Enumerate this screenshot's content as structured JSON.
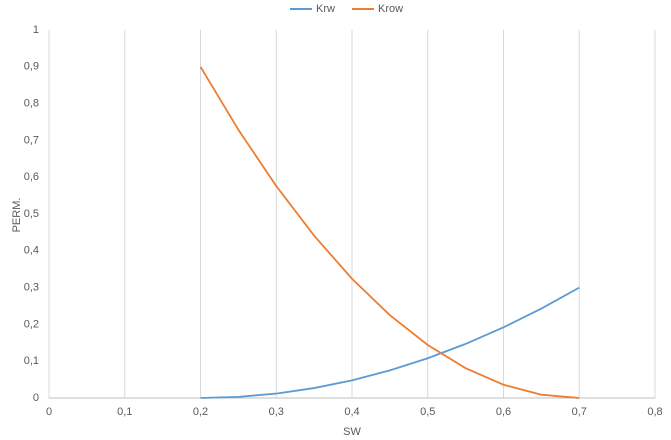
{
  "chart_data": {
    "type": "line",
    "x_label": "SW",
    "y_label": "PERM.",
    "x": [
      0.2,
      0.25,
      0.3,
      0.35,
      0.4,
      0.45,
      0.5,
      0.55,
      0.6,
      0.65,
      0.7
    ],
    "series": [
      {
        "name": "Krw",
        "color": "#5b9bd5",
        "values": [
          0,
          0.003,
          0.012,
          0.027,
          0.048,
          0.075,
          0.108,
          0.147,
          0.192,
          0.243,
          0.3
        ]
      },
      {
        "name": "Krow",
        "color": "#ed7d31",
        "values": [
          0.9,
          0.729,
          0.576,
          0.441,
          0.324,
          0.225,
          0.144,
          0.081,
          0.036,
          0.009,
          0
        ]
      }
    ],
    "xlim": [
      0,
      0.8
    ],
    "xticks": [
      0,
      {
        "value": 0.1,
        "label": "0,1"
      },
      {
        "value": 0.2,
        "label": "0,2"
      },
      {
        "value": 0.3,
        "label": "0,3"
      },
      {
        "value": 0.4,
        "label": "0,4"
      },
      {
        "value": 0.5,
        "label": "0,5"
      },
      {
        "value": 0.6,
        "label": "0,6"
      },
      {
        "value": 0.7,
        "label": "0,7"
      },
      {
        "value": 0.8,
        "label": "0,8"
      }
    ],
    "ylim": [
      0,
      1
    ],
    "yticks": [
      0,
      {
        "value": 0.1,
        "label": "0,1"
      },
      {
        "value": 0.2,
        "label": "0,2"
      },
      {
        "value": 0.3,
        "label": "0,3"
      },
      {
        "value": 0.4,
        "label": "0,4"
      },
      {
        "value": 0.5,
        "label": "0,5"
      },
      {
        "value": 0.6,
        "label": "0,6"
      },
      {
        "value": 0.7,
        "label": "0,7"
      },
      {
        "value": 0.8,
        "label": "0,8"
      },
      {
        "value": 0.9,
        "label": "0,9"
      },
      1
    ],
    "xgrid": true,
    "ygrid": false,
    "legend": "top"
  }
}
